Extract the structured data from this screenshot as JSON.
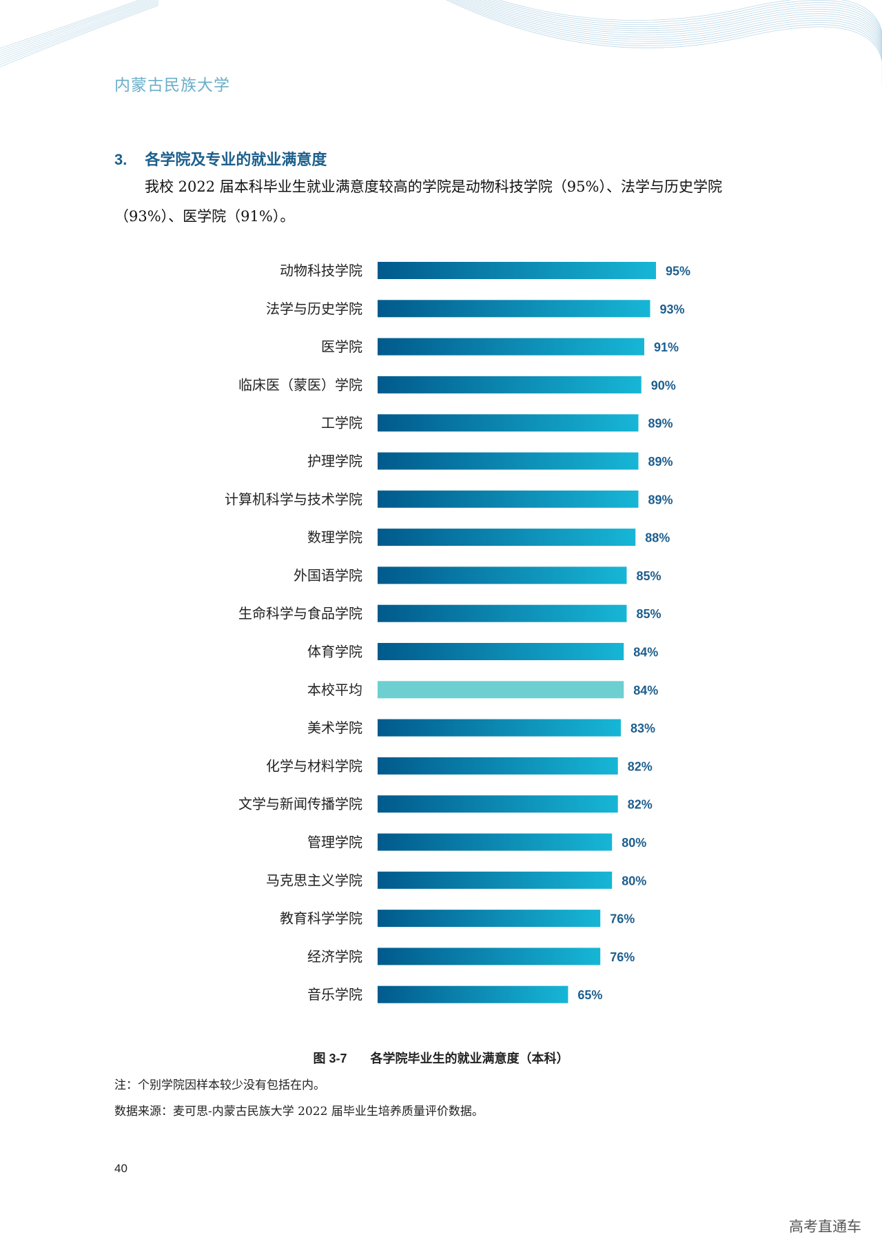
{
  "header": {
    "school_name": "内蒙古民族大学"
  },
  "section": {
    "number": "3.",
    "title": "各学院及专业的就业满意度",
    "paragraph": "我校 2022 届本科毕业生就业满意度较高的学院是动物科技学院（95%）、法学与历史学院（93%）、医学院（91%）。"
  },
  "chart_data": {
    "type": "bar",
    "orientation": "horizontal",
    "categories": [
      "动物科技学院",
      "法学与历史学院",
      "医学院",
      "临床医（蒙医）学院",
      "工学院",
      "护理学院",
      "计算机科学与技术学院",
      "数理学院",
      "外国语学院",
      "生命科学与食品学院",
      "体育学院",
      "本校平均",
      "美术学院",
      "化学与材料学院",
      "文学与新闻传播学院",
      "管理学院",
      "马克思主义学院",
      "教育科学学院",
      "经济学院",
      "音乐学院"
    ],
    "values": [
      95,
      93,
      91,
      90,
      89,
      89,
      89,
      88,
      85,
      85,
      84,
      84,
      83,
      82,
      82,
      80,
      80,
      76,
      76,
      65
    ],
    "value_labels": [
      "95%",
      "93%",
      "91%",
      "90%",
      "89%",
      "89%",
      "89%",
      "88%",
      "85%",
      "85%",
      "84%",
      "84%",
      "83%",
      "82%",
      "82%",
      "80%",
      "80%",
      "76%",
      "76%",
      "65%"
    ],
    "highlight_category": "本校平均",
    "colors": {
      "bar_start": "#015a8c",
      "bar_end": "#17b6d6",
      "highlight": "#6dcfd0",
      "value_text": "#1d5e8e"
    },
    "xlim": [
      0,
      100
    ],
    "grid": false,
    "legend": "none"
  },
  "caption": {
    "figure_no": "图 3-7",
    "text": "各学院毕业生的就业满意度（本科）"
  },
  "notes": {
    "note": "注：个别学院因样本较少没有包括在内。",
    "source": "数据来源：麦可思-内蒙古民族大学 2022 届毕业生培养质量评价数据。"
  },
  "footer": {
    "page_number": "40",
    "watermark": "高考直通车"
  }
}
